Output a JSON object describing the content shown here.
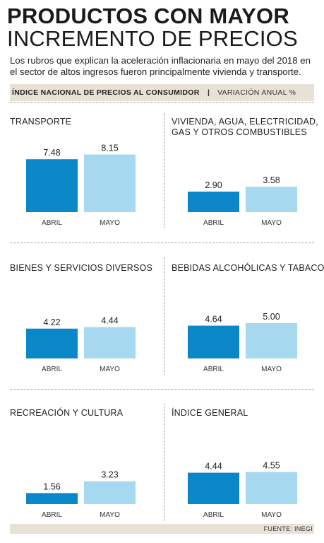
{
  "title_line1": "PRODUCTOS CON MAYOR",
  "title_line2": "INCREMENTO DE PRECIOS",
  "subtitle": "Los rubros que explican la aceleración inflacionaria en mayo del 2018 en el sector de altos ingresos fueron principalmente vivienda y transporte.",
  "header": {
    "left": "ÍNDICE NACIONAL DE PRECIOS AL CONSUMIDOR",
    "separator": "|",
    "right": "VARIACIÓN ANUAL %"
  },
  "source": "FUENTE: INEGI",
  "colors": {
    "abril": "#0a87c8",
    "mayo": "#a6d8ef",
    "band": "#e8e1d6"
  },
  "chart_data": [
    {
      "type": "bar",
      "title_lines": [
        "TRANSPORTE"
      ],
      "categories": [
        "ABRIL",
        "MAYO"
      ],
      "values": [
        7.48,
        8.15
      ],
      "labels": [
        "7.48",
        "8.15"
      ]
    },
    {
      "type": "bar",
      "title_lines": [
        "VIVIENDA, AGUA, ELECTRICIDAD,",
        "GAS Y OTROS COMBUSTIBLES"
      ],
      "categories": [
        "ABRIL",
        "MAYO"
      ],
      "values": [
        2.9,
        3.58
      ],
      "labels": [
        "2.90",
        "3.58"
      ]
    },
    {
      "type": "bar",
      "title_lines": [
        "BIENES Y SERVICIOS DIVERSOS"
      ],
      "categories": [
        "ABRIL",
        "MAYO"
      ],
      "values": [
        4.22,
        4.44
      ],
      "labels": [
        "4.22",
        "4.44"
      ]
    },
    {
      "type": "bar",
      "title_lines": [
        "BEBIDAS ALCOHÓLICAS Y TABACO"
      ],
      "categories": [
        "ABRIL",
        "MAYO"
      ],
      "values": [
        4.64,
        5.0
      ],
      "labels": [
        "4.64",
        "5.00"
      ]
    },
    {
      "type": "bar",
      "title_lines": [
        "RECREACIÓN Y CULTURA"
      ],
      "categories": [
        "ABRIL",
        "MAYO"
      ],
      "values": [
        1.56,
        3.23
      ],
      "labels": [
        "1.56",
        "3.23"
      ]
    },
    {
      "type": "bar",
      "title_lines": [
        "ÍNDICE GENERAL"
      ],
      "categories": [
        "ABRIL",
        "MAYO"
      ],
      "values": [
        4.44,
        4.55
      ],
      "labels": [
        "4.44",
        "4.55"
      ]
    }
  ]
}
